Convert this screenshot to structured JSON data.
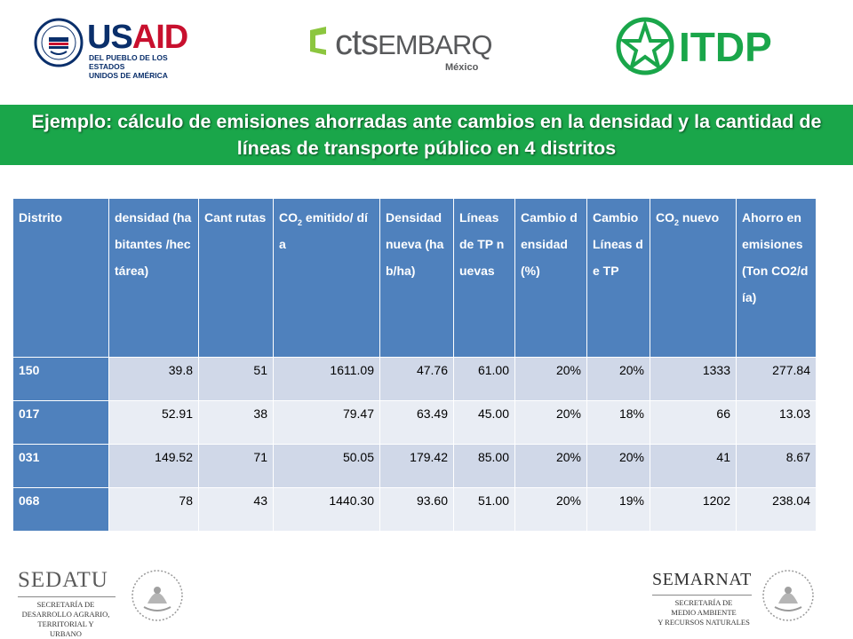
{
  "logos": {
    "usaid": {
      "word_blue": "US",
      "word_red": "AID",
      "sub1": "DEL PUEBLO DE LOS ESTADOS",
      "sub2": "UNIDOS DE AMÉRICA"
    },
    "cts": {
      "word_light": "cts",
      "word_bold": "EMBARQ",
      "sub": "México"
    },
    "itdp": {
      "word": "ITDP"
    },
    "sedatu": {
      "word": "SEDATU",
      "sub1": "SECRETARÍA DE",
      "sub2": "DESARROLLO AGRARIO,",
      "sub3": "TERRITORIAL Y URBANO"
    },
    "semarnat": {
      "word": "SEMARNAT",
      "sub1": "SECRETARÍA DE",
      "sub2": "MEDIO AMBIENTE",
      "sub3": "Y RECURSOS NATURALES"
    }
  },
  "title": "Ejemplo: cálculo de emisiones ahorradas ante cambios en la densidad y la cantidad de líneas de transporte público en 4 distritos",
  "table": {
    "headers": {
      "distrito": "Distrito",
      "densidad": "densidad (habitantes /hectárea)",
      "cant_rutas": "Cant rutas",
      "co2_emitido_pre": "CO",
      "co2_emitido_sub": "2",
      "co2_emitido_post": " emitido/ día",
      "densidad_nueva": "Densidad nueva (hab/ha)",
      "lineas_tp": "Líneas de TP nuevas",
      "cambio_densidad": "Cambio densidad (%)",
      "cambio_lineas": "Cambio Líneas de TP",
      "co2_nuevo_pre": "CO",
      "co2_nuevo_sub": "2",
      "co2_nuevo_post": " nuevo",
      "ahorro": "Ahorro en emisiones (Ton CO2/día)"
    },
    "rows": [
      [
        "150",
        "39.8",
        "51",
        "1611.09",
        "47.76",
        "61.00",
        "20%",
        "20%",
        "1333",
        "277.84"
      ],
      [
        "017",
        "52.91",
        "38",
        "79.47",
        "63.49",
        "45.00",
        "20%",
        "18%",
        "66",
        "13.03"
      ],
      [
        "031",
        "149.52",
        "71",
        "50.05",
        "179.42",
        "85.00",
        "20%",
        "20%",
        "41",
        "8.67"
      ],
      [
        "068",
        "78",
        "43",
        "1440.30",
        "93.60",
        "51.00",
        "20%",
        "19%",
        "1202",
        "238.04"
      ]
    ]
  },
  "colors": {
    "green": "#1aa64a",
    "header_blue": "#4f81bd",
    "row_odd": "#d0d8e8",
    "row_even": "#e9edf4"
  }
}
